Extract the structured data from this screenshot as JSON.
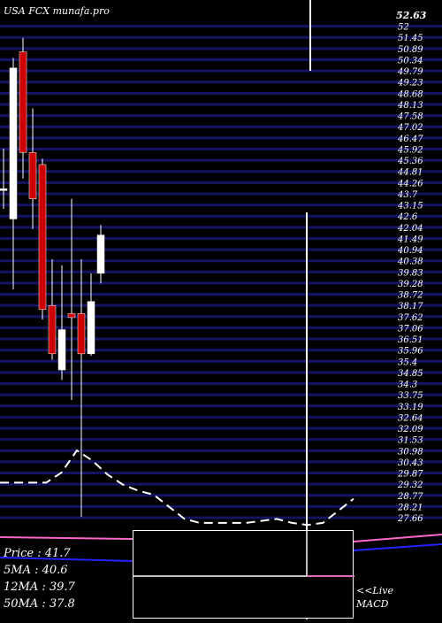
{
  "header": {
    "title": "USA FCX  munafa.pro"
  },
  "chart_data": {
    "type": "candlestick",
    "last_price_label": "52.63",
    "y_tick_labels": [
      "52",
      "51.45",
      "50.89",
      "50.34",
      "49.79",
      "49.23",
      "48.68",
      "48.13",
      "47.58",
      "47.02",
      "46.47",
      "45.92",
      "45.36",
      "44.81",
      "44.26",
      "43.7",
      "43.15",
      "42.6",
      "42.04",
      "41.49",
      "40.94",
      "40.38",
      "39.83",
      "39.28",
      "38.72",
      "38.17",
      "37.62",
      "37.06",
      "36.51",
      "35.96",
      "35.4",
      "34.85",
      "34.3",
      "33.75",
      "33.19",
      "32.64",
      "32.09",
      "31.53",
      "30.98",
      "30.43",
      "29.87",
      "29.32",
      "28.77",
      "28.21",
      "27.66"
    ],
    "ylim": [
      27.66,
      52.63
    ],
    "candles": [
      {
        "open": 44.0,
        "high": 46.0,
        "low": 43.0,
        "close": 44.0,
        "color": "white"
      },
      {
        "open": 42.5,
        "high": 50.5,
        "low": 39.0,
        "close": 50.0,
        "color": "white"
      },
      {
        "open": 50.8,
        "high": 51.5,
        "low": 44.5,
        "close": 45.8,
        "color": "red"
      },
      {
        "open": 45.8,
        "high": 48.0,
        "low": 42.0,
        "close": 43.5,
        "color": "red"
      },
      {
        "open": 45.2,
        "high": 45.5,
        "low": 37.5,
        "close": 38.0,
        "color": "red"
      },
      {
        "open": 38.2,
        "high": 40.5,
        "low": 35.5,
        "close": 35.8,
        "color": "red"
      },
      {
        "open": 35.0,
        "high": 40.2,
        "low": 34.5,
        "close": 37.0,
        "color": "white"
      },
      {
        "open": 37.8,
        "high": 43.5,
        "low": 33.5,
        "close": 37.6,
        "color": "red"
      },
      {
        "open": 37.8,
        "high": 40.5,
        "low": 27.7,
        "close": 35.8,
        "color": "red"
      },
      {
        "open": 35.8,
        "high": 39.8,
        "low": 35.7,
        "close": 38.4,
        "color": "white"
      },
      {
        "open": 39.8,
        "high": 42.2,
        "low": 39.3,
        "close": 41.7,
        "color": "white"
      }
    ],
    "ma_line_dashed": [
      29.4,
      29.4,
      29.4,
      29.4,
      29.9,
      31.0,
      30.5,
      29.8,
      29.3,
      29.0,
      28.8,
      28.2,
      27.6,
      27.4,
      27.4,
      27.4,
      27.4,
      27.5,
      27.6,
      27.4,
      27.3,
      27.4,
      28.0,
      28.6
    ]
  },
  "stats": {
    "price": "Price   : 41.7",
    "ma5": "5MA : 40.6",
    "ma12": "12MA : 39.7",
    "ma50": "50MA : 37.8"
  },
  "macd_panel": {
    "live": "<<Live",
    "label": "MACD"
  },
  "colors": {
    "grid": "#141464",
    "up": "#ffffff",
    "down": "#cc0000",
    "ma_pink": "#ff66cc",
    "ma_blue": "#2222ff",
    "bg": "#000000"
  }
}
